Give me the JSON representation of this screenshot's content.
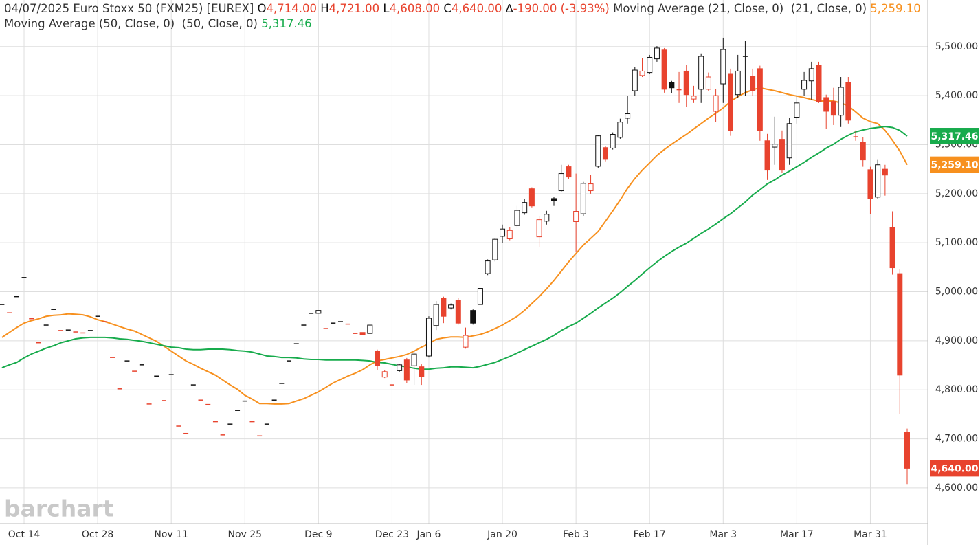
{
  "chart_data": {
    "type": "candlestick",
    "header": {
      "title": "04/07/2025 Euro Stoxx 50 (FXM25) [EUREX]",
      "fields": [
        {
          "key": "O",
          "value": "4,714.00"
        },
        {
          "key": "H",
          "value": "4,721.00"
        },
        {
          "key": "L",
          "value": "4,608.00"
        },
        {
          "key": "C",
          "value": "4,640.00"
        },
        {
          "key": "∆",
          "value": "-190.00 (-3.93%)"
        }
      ]
    },
    "watermark": "barchart",
    "categories": [
      null,
      null,
      null,
      "Oct 14",
      null,
      null,
      null,
      null,
      null,
      null,
      null,
      null,
      null,
      "Oct 28",
      null,
      null,
      null,
      null,
      null,
      null,
      null,
      null,
      null,
      "Nov 11",
      null,
      null,
      null,
      null,
      null,
      null,
      null,
      null,
      null,
      "Nov 25",
      null,
      null,
      null,
      null,
      null,
      null,
      null,
      null,
      null,
      "Dec 9",
      null,
      null,
      null,
      null,
      null,
      null,
      null,
      null,
      null,
      "Dec 23",
      null,
      null,
      null,
      null,
      "Jan 6",
      null,
      null,
      null,
      null,
      null,
      null,
      null,
      null,
      null,
      "Jan 20",
      null,
      null,
      null,
      null,
      null,
      null,
      null,
      null,
      null,
      "Feb 3",
      null,
      null,
      null,
      null,
      null,
      null,
      null,
      null,
      null,
      "Feb 17",
      null,
      null,
      null,
      null,
      null,
      null,
      null,
      null,
      null,
      "Mar 3",
      null,
      null,
      null,
      null,
      null,
      null,
      null,
      null,
      null,
      "Mar 17",
      null,
      null,
      null,
      null,
      null,
      null,
      null,
      null,
      null,
      "Mar 31",
      null,
      null,
      null,
      null,
      null
    ],
    "candles": {
      "up_color": "#111111",
      "down_color": "#e8432e",
      "open": [
        4974,
        4957,
        4990,
        5029,
        4945,
        4896,
        4932,
        4964,
        4921,
        4922,
        4918,
        4916,
        4921,
        4950,
        4939,
        4866,
        4802,
        4859,
        4838,
        4851,
        4771,
        4828,
        4778,
        4831,
        4726,
        4711,
        4810,
        4779,
        4770,
        4735,
        4708,
        4730,
        4758,
        4777,
        4735,
        4706,
        4730,
        4779,
        4813,
        4859,
        4894,
        4932,
        4956,
        4956,
        4925,
        4936,
        4939,
        4934,
        4915,
        4917,
        4915,
        4879,
        4826,
        4810,
        4839,
        4861,
        4849,
        4847,
        4869,
        4931,
        4987,
        4967,
        4983,
        4887,
        4962,
        4974,
        5037,
        5065,
        5113,
        5108,
        5135,
        5161,
        5210,
        5112,
        5144,
        5190,
        5206,
        5255,
        5143,
        5159,
        5206,
        5256,
        5294,
        5293,
        5315,
        5354,
        5410,
        5441,
        5447,
        5475,
        5493,
        5427,
        5414,
        5450,
        5393,
        5413,
        5413,
        5368,
        5424,
        5445,
        5402,
        5482,
        5440,
        5455,
        5308,
        5295,
        5311,
        5273,
        5356,
        5413,
        5430,
        5462,
        5396,
        5388,
        5360,
        5427,
        5318,
        5305,
        5249,
        5193,
        5250,
        5131,
        5037,
        4714
      ],
      "high": [
        4974,
        4957,
        4990,
        5029,
        4945,
        4896,
        4932,
        4964,
        4921,
        4922,
        4918,
        4916,
        4921,
        4950,
        4939,
        4866,
        4802,
        4859,
        4838,
        4851,
        4771,
        4828,
        4778,
        4831,
        4726,
        4711,
        4810,
        4779,
        4770,
        4735,
        4708,
        4730,
        4758,
        4777,
        4735,
        4706,
        4730,
        4779,
        4813,
        4859,
        4894,
        4932,
        4956,
        4962,
        4925,
        4936,
        4939,
        4934,
        4915,
        4917,
        4932,
        4882,
        4840,
        4810,
        4852,
        4865,
        4880,
        4852,
        4950,
        4981,
        4990,
        4976,
        4987,
        4927,
        4964,
        5007,
        5066,
        5110,
        5137,
        5132,
        5175,
        5189,
        5213,
        5155,
        5165,
        5194,
        5259,
        5259,
        5241,
        5224,
        5238,
        5320,
        5297,
        5325,
        5353,
        5399,
        5458,
        5476,
        5483,
        5501,
        5497,
        5430,
        5448,
        5462,
        5420,
        5486,
        5447,
        5413,
        5518,
        5455,
        5483,
        5511,
        5455,
        5461,
        5322,
        5357,
        5329,
        5354,
        5399,
        5448,
        5469,
        5469,
        5402,
        5416,
        5438,
        5438,
        5329,
        5315,
        5255,
        5269,
        5259,
        5164,
        5046,
        4721
      ],
      "low": [
        4974,
        4957,
        4990,
        5029,
        4945,
        4896,
        4932,
        4964,
        4921,
        4922,
        4918,
        4916,
        4921,
        4950,
        4939,
        4866,
        4802,
        4859,
        4838,
        4851,
        4771,
        4828,
        4778,
        4831,
        4726,
        4711,
        4810,
        4779,
        4770,
        4735,
        4708,
        4730,
        4758,
        4777,
        4735,
        4706,
        4730,
        4779,
        4813,
        4859,
        4894,
        4932,
        4956,
        4956,
        4925,
        4936,
        4939,
        4934,
        4915,
        4913,
        4915,
        4841,
        4824,
        4810,
        4837,
        4814,
        4810,
        4810,
        4866,
        4922,
        4936,
        4964,
        4933,
        4884,
        4933,
        4974,
        5034,
        5062,
        5100,
        5105,
        5130,
        5157,
        5172,
        5091,
        5137,
        5175,
        5203,
        5230,
        5082,
        5155,
        5200,
        5252,
        5266,
        5290,
        5312,
        5343,
        5399,
        5438,
        5444,
        5469,
        5406,
        5405,
        5385,
        5377,
        5385,
        5385,
        5410,
        5346,
        5385,
        5318,
        5396,
        5399,
        5399,
        5308,
        5228,
        5259,
        5242,
        5259,
        5343,
        5399,
        5392,
        5385,
        5332,
        5340,
        5336,
        5343,
        5308,
        5255,
        5158,
        5190,
        5196,
        5035,
        4751,
        4608
      ],
      "close": [
        4974,
        4957,
        4990,
        5029,
        4945,
        4896,
        4932,
        4964,
        4921,
        4922,
        4918,
        4916,
        4921,
        4950,
        4939,
        4866,
        4802,
        4859,
        4838,
        4851,
        4771,
        4828,
        4778,
        4831,
        4726,
        4711,
        4810,
        4779,
        4770,
        4735,
        4708,
        4730,
        4758,
        4777,
        4735,
        4706,
        4730,
        4779,
        4813,
        4859,
        4894,
        4932,
        4956,
        4962,
        4925,
        4936,
        4939,
        4934,
        4915,
        4913,
        4932,
        4849,
        4837,
        4810,
        4851,
        4820,
        4873,
        4827,
        4946,
        4974,
        4950,
        4973,
        4936,
        4911,
        4936,
        5007,
        5063,
        5107,
        5128,
        5125,
        5166,
        5182,
        5175,
        5147,
        5158,
        5186,
        5241,
        5234,
        5164,
        5221,
        5220,
        5318,
        5270,
        5321,
        5346,
        5363,
        5452,
        5450,
        5478,
        5497,
        5413,
        5416,
        5412,
        5402,
        5399,
        5480,
        5438,
        5400,
        5494,
        5329,
        5450,
        5480,
        5410,
        5329,
        5248,
        5301,
        5248,
        5343,
        5385,
        5431,
        5455,
        5388,
        5368,
        5360,
        5417,
        5350,
        5316,
        5269,
        5190,
        5259,
        5238,
        5049,
        4830,
        4640
      ]
    },
    "series": [
      {
        "name": "Moving Average (21, Close, 0)  (21, Close, 0)",
        "color": "#f7901e",
        "value_label": "5,259.10",
        "values": [
          4907,
          4917,
          4927,
          4936,
          4941,
          4945,
          4950,
          4952,
          4953,
          4955,
          4954,
          4953,
          4949,
          4943,
          4939,
          4934,
          4929,
          4924,
          4920,
          4913,
          4906,
          4899,
          4889,
          4879,
          4869,
          4859,
          4852,
          4844,
          4837,
          4830,
          4820,
          4810,
          4801,
          4789,
          4781,
          4772,
          4772,
          4771,
          4771,
          4772,
          4777,
          4782,
          4789,
          4796,
          4805,
          4814,
          4821,
          4828,
          4834,
          4841,
          4851,
          4859,
          4862,
          4865,
          4868,
          4872,
          4879,
          4887,
          4894,
          4903,
          4906,
          4908,
          4908,
          4907,
          4910,
          4913,
          4918,
          4925,
          4932,
          4941,
          4950,
          4962,
          4976,
          4990,
          5006,
          5023,
          5042,
          5061,
          5078,
          5095,
          5109,
          5123,
          5144,
          5165,
          5187,
          5211,
          5231,
          5248,
          5263,
          5278,
          5290,
          5301,
          5311,
          5321,
          5332,
          5343,
          5354,
          5364,
          5375,
          5388,
          5398,
          5406,
          5412,
          5416,
          5413,
          5410,
          5406,
          5402,
          5399,
          5396,
          5392,
          5389,
          5389,
          5389,
          5385,
          5379,
          5367,
          5354,
          5347,
          5343,
          5329,
          5309,
          5287,
          5259.1
        ]
      },
      {
        "name": "Moving Average (50, Close, 0)  (50, Close, 0)",
        "color": "#17ab4c",
        "value_label": "5,317.46",
        "values": [
          4845,
          4851,
          4856,
          4865,
          4873,
          4879,
          4885,
          4890,
          4896,
          4900,
          4904,
          4906,
          4907,
          4907,
          4907,
          4906,
          4904,
          4903,
          4901,
          4899,
          4896,
          4893,
          4890,
          4887,
          4886,
          4883,
          4882,
          4882,
          4883,
          4883,
          4883,
          4882,
          4880,
          4879,
          4877,
          4873,
          4869,
          4868,
          4866,
          4866,
          4865,
          4863,
          4862,
          4862,
          4861,
          4861,
          4861,
          4861,
          4861,
          4860,
          4859,
          4856,
          4855,
          4852,
          4849,
          4847,
          4844,
          4842,
          4842,
          4844,
          4845,
          4847,
          4847,
          4846,
          4845,
          4848,
          4852,
          4856,
          4862,
          4868,
          4875,
          4882,
          4889,
          4896,
          4903,
          4911,
          4921,
          4929,
          4936,
          4946,
          4956,
          4967,
          4977,
          4987,
          4998,
          5011,
          5023,
          5036,
          5049,
          5061,
          5072,
          5082,
          5091,
          5099,
          5109,
          5119,
          5128,
          5138,
          5149,
          5159,
          5171,
          5183,
          5197,
          5208,
          5220,
          5228,
          5238,
          5246,
          5255,
          5264,
          5274,
          5283,
          5293,
          5301,
          5311,
          5319,
          5326,
          5330,
          5333,
          5335,
          5337,
          5335,
          5329,
          5317.46
        ]
      }
    ],
    "ylim": [
      4527,
      5595
    ],
    "yticks": [
      {
        "value": 4600,
        "label": "4,600.00"
      },
      {
        "value": 4700,
        "label": "4,700.00"
      },
      {
        "value": 4800,
        "label": "4,800.00"
      },
      {
        "value": 4900,
        "label": "4,900.00"
      },
      {
        "value": 5000,
        "label": "5,000.00"
      },
      {
        "value": 5100,
        "label": "5,100.00"
      },
      {
        "value": 5200,
        "label": "5,200.00"
      },
      {
        "value": 5300,
        "label": "5,300.00"
      },
      {
        "value": 5400,
        "label": "5,400.00"
      },
      {
        "value": 5500,
        "label": "5,500.00"
      }
    ],
    "grid": true
  }
}
